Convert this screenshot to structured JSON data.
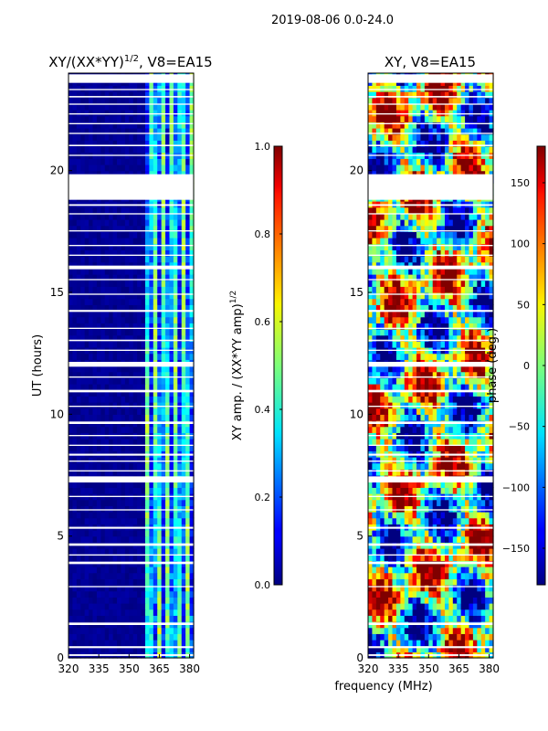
{
  "figure": {
    "suptitle": "2019-08-06 0.0-24.0",
    "shared_xlabel": "frequency (MHz)"
  },
  "chart_data": [
    {
      "type": "heatmap",
      "title_text": "XY/(XX*YY)",
      "title_exp": "1/2",
      "title_suffix": ", V8=EA15",
      "xlabel": "frequency (MHz)",
      "ylabel": "UT (hours)",
      "xlim": [
        320,
        382
      ],
      "ylim": [
        0,
        24
      ],
      "xticks": [
        320,
        335,
        350,
        365,
        380
      ],
      "yticks": [
        0,
        5,
        10,
        15,
        20
      ],
      "colorbar": {
        "label_text": "XY amp. / (XX*YY amp)",
        "label_exp": "1/2",
        "range": [
          0.0,
          1.0
        ],
        "ticks": [
          "0.0",
          "0.2",
          "0.4",
          "0.6",
          "0.8",
          "1.0"
        ],
        "tick_values": [
          0.0,
          0.2,
          0.4,
          0.6,
          0.8,
          1.0
        ]
      },
      "colormap": "jet",
      "description_values": {
        "low_band_level": 0.0,
        "high_band_level": 0.4,
        "band_start_mhz": 359
      }
    },
    {
      "type": "heatmap",
      "title_text": "XY, V8=EA15",
      "xlabel": "frequency (MHz)",
      "ylabel": "",
      "xlim": [
        320,
        382
      ],
      "ylim": [
        0,
        24
      ],
      "xticks": [
        320,
        335,
        350,
        365,
        380
      ],
      "yticks": [
        0,
        5,
        10,
        15,
        20
      ],
      "colorbar": {
        "label_text": "phase (deg.)",
        "range": [
          -180,
          180
        ],
        "ticks": [
          "150",
          "100",
          "50",
          "0",
          "−50",
          "−100",
          "−150"
        ],
        "tick_values": [
          150,
          100,
          50,
          0,
          -50,
          -100,
          -150
        ]
      },
      "colormap": "jet"
    }
  ]
}
